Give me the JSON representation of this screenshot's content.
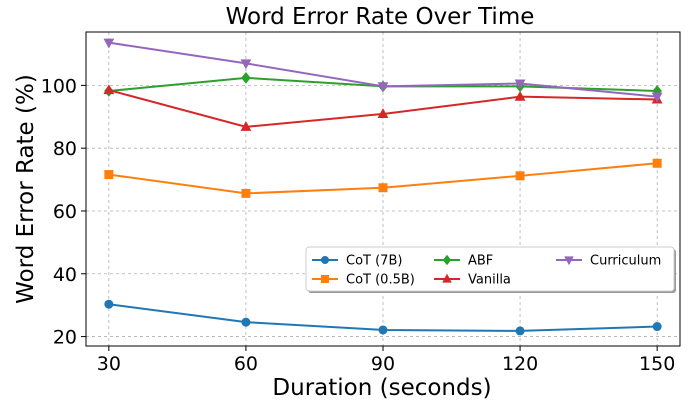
{
  "chart_data": {
    "type": "line",
    "title": "Word Error Rate Over Time",
    "xlabel": "Duration (seconds)",
    "ylabel": "Word Error Rate (%)",
    "x": [
      30,
      60,
      90,
      120,
      150
    ],
    "xticks": [
      "30",
      "60",
      "90",
      "120",
      "150"
    ],
    "yticks": [
      "20",
      "40",
      "60",
      "80",
      "100"
    ],
    "xlim": [
      25,
      155
    ],
    "ylim": [
      17,
      117
    ],
    "grid": true,
    "legend_position": "lower-right",
    "series": [
      {
        "name": "CoT (7B)",
        "color": "#1f77b4",
        "marker": "circle",
        "values": [
          30.3,
          24.6,
          22.1,
          21.8,
          23.2
        ]
      },
      {
        "name": "CoT (0.5B)",
        "color": "#ff7f0e",
        "marker": "square",
        "values": [
          71.6,
          65.6,
          67.4,
          71.2,
          75.2
        ]
      },
      {
        "name": "ABF",
        "color": "#2ca02c",
        "marker": "diamond",
        "values": [
          98.2,
          102.4,
          99.7,
          99.7,
          98.2
        ]
      },
      {
        "name": "Vanilla",
        "color": "#d62728",
        "marker": "triangle-up",
        "values": [
          98.5,
          86.8,
          90.9,
          96.4,
          95.5
        ]
      },
      {
        "name": "Curriculum",
        "color": "#9467bd",
        "marker": "triangle-down",
        "values": [
          113.6,
          107.0,
          99.7,
          100.6,
          96.4
        ]
      }
    ]
  }
}
